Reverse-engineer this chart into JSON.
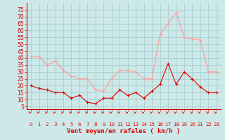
{
  "hours": [
    0,
    1,
    2,
    3,
    4,
    5,
    6,
    7,
    8,
    9,
    10,
    11,
    12,
    13,
    14,
    15,
    16,
    17,
    18,
    19,
    20,
    21,
    22,
    23
  ],
  "wind_avg": [
    20,
    18,
    17,
    15,
    15,
    11,
    13,
    8,
    7,
    11,
    11,
    17,
    13,
    15,
    11,
    16,
    21,
    36,
    21,
    30,
    25,
    19,
    15,
    15
  ],
  "wind_gust": [
    41,
    41,
    35,
    38,
    31,
    27,
    25,
    25,
    17,
    16,
    25,
    31,
    31,
    30,
    25,
    25,
    57,
    65,
    73,
    55,
    54,
    53,
    30,
    30
  ],
  "xlabel": "Vent moyen/en rafales ( km/h )",
  "ylim": [
    3,
    80
  ],
  "yticks": [
    5,
    10,
    15,
    20,
    25,
    30,
    35,
    40,
    45,
    50,
    55,
    60,
    65,
    70,
    75
  ],
  "bg_color": "#cce8e8",
  "grid_color": "#aacfcf",
  "line_color_avg": "#dd0000",
  "line_color_gust": "#ff9999",
  "xlabel_color": "#dd0000",
  "tick_color": "#dd0000"
}
